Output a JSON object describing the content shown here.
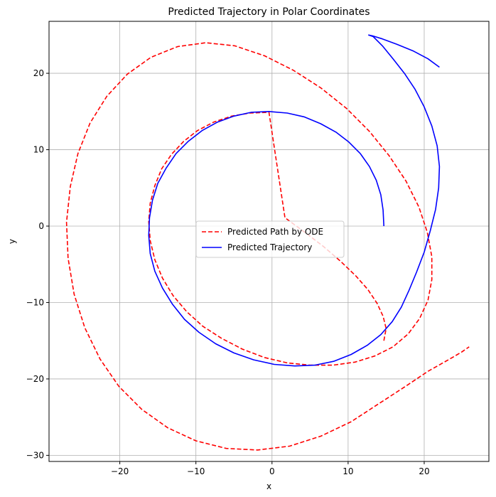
{
  "chart_data": {
    "type": "line",
    "title": "Predicted Trajectory in Polar Coordinates",
    "xlabel": "x",
    "ylabel": "y",
    "xlim": [
      -29.3,
      28.5
    ],
    "ylim": [
      -30.8,
      26.8
    ],
    "xticks": [
      -20,
      -10,
      0,
      10,
      20
    ],
    "yticks": [
      -30,
      -20,
      -10,
      0,
      10,
      20
    ],
    "grid": true,
    "legend_position": "center",
    "series": [
      {
        "name": "Predicted Path by ODE",
        "color": "#ff0000",
        "style": "dashed",
        "x": [
          14.7,
          15.0,
          14.6,
          13.8,
          12.6,
          11.0,
          9.0,
          6.8,
          4.3,
          1.7,
          -0.4,
          -2.9,
          -5.3,
          -7.7,
          -9.8,
          -11.6,
          -13.2,
          -14.5,
          -15.4,
          -16.0,
          -16.2,
          -16.0,
          -15.4,
          -14.4,
          -13.0,
          -11.2,
          -9.1,
          -6.6,
          -3.9,
          -1.0,
          2.0,
          5.0,
          8.0,
          10.9,
          13.5,
          15.9,
          17.9,
          19.4,
          20.5,
          21.0,
          21.0,
          20.4,
          19.3,
          17.6,
          15.4,
          12.8,
          9.8,
          6.4,
          2.8,
          -1.0,
          -4.9,
          -8.7,
          -12.4,
          -15.9,
          -19.0,
          -21.7,
          -23.9,
          -25.5,
          -26.5,
          -27.0,
          -26.8,
          -26.0,
          -24.6,
          -22.6,
          -20.1,
          -17.1,
          -13.7,
          -10.0,
          -6.0,
          -1.9,
          2.3,
          6.4,
          10.4,
          14.1,
          17.5,
          20.5,
          23.0,
          24.9,
          25.9
        ],
        "y": [
          -15.0,
          -13.4,
          -11.8,
          -10.1,
          -8.3,
          -6.5,
          -4.6,
          -2.7,
          -0.8,
          1.1,
          14.9,
          14.8,
          14.4,
          13.6,
          12.5,
          11.1,
          9.4,
          7.5,
          5.3,
          3.0,
          0.6,
          -1.9,
          -4.4,
          -6.8,
          -9.1,
          -11.2,
          -13.1,
          -14.7,
          -16.1,
          -17.2,
          -17.9,
          -18.2,
          -18.2,
          -17.8,
          -17.0,
          -15.8,
          -14.1,
          -12.1,
          -9.7,
          -7.0,
          -4.0,
          -0.8,
          2.5,
          5.9,
          9.2,
          12.4,
          15.4,
          18.1,
          20.4,
          22.3,
          23.6,
          24.0,
          23.5,
          22.1,
          19.9,
          17.0,
          13.5,
          9.5,
          5.2,
          0.5,
          -4.2,
          -8.9,
          -13.3,
          -17.4,
          -21.0,
          -24.0,
          -26.4,
          -28.1,
          -29.1,
          -29.3,
          -28.8,
          -27.5,
          -25.6,
          -23.2,
          -21.0,
          -19.0,
          -17.6,
          -16.5,
          -15.8
        ]
      },
      {
        "name": "Predicted Trajectory",
        "color": "#0000ff",
        "style": "solid",
        "x": [
          14.7,
          14.6,
          14.3,
          13.7,
          12.8,
          11.6,
          10.1,
          8.4,
          6.4,
          4.2,
          2.0,
          -0.4,
          -2.7,
          -5.0,
          -7.2,
          -9.2,
          -11.0,
          -12.6,
          -13.9,
          -15.0,
          -15.7,
          -16.1,
          -16.2,
          -16.0,
          -15.4,
          -14.4,
          -13.1,
          -11.5,
          -9.6,
          -7.4,
          -5.0,
          -2.4,
          0.3,
          3.0,
          5.6,
          8.1,
          10.4,
          12.5,
          14.3,
          15.8,
          17.0,
          18.0,
          19.0,
          20.0,
          20.8,
          21.5,
          21.9,
          22.0,
          21.7,
          21.0,
          20.0,
          18.8,
          17.4,
          15.9,
          14.5,
          13.3,
          12.7,
          13.2,
          14.5,
          16.4,
          18.6,
          20.5,
          22.0
        ],
        "y": [
          0.0,
          2.1,
          4.1,
          6.0,
          7.8,
          9.5,
          11.0,
          12.3,
          13.4,
          14.3,
          14.8,
          15.0,
          14.9,
          14.4,
          13.6,
          12.5,
          11.1,
          9.5,
          7.6,
          5.6,
          3.4,
          1.1,
          -1.2,
          -3.6,
          -5.9,
          -8.1,
          -10.2,
          -12.2,
          -13.9,
          -15.4,
          -16.6,
          -17.5,
          -18.1,
          -18.3,
          -18.2,
          -17.7,
          -16.8,
          -15.6,
          -14.2,
          -12.5,
          -10.6,
          -8.4,
          -6.0,
          -3.4,
          -0.6,
          2.2,
          5.0,
          7.8,
          10.5,
          13.1,
          15.6,
          17.9,
          20.0,
          21.9,
          23.6,
          24.8,
          25.0,
          24.9,
          24.5,
          23.8,
          22.9,
          21.9,
          20.8
        ]
      }
    ]
  }
}
